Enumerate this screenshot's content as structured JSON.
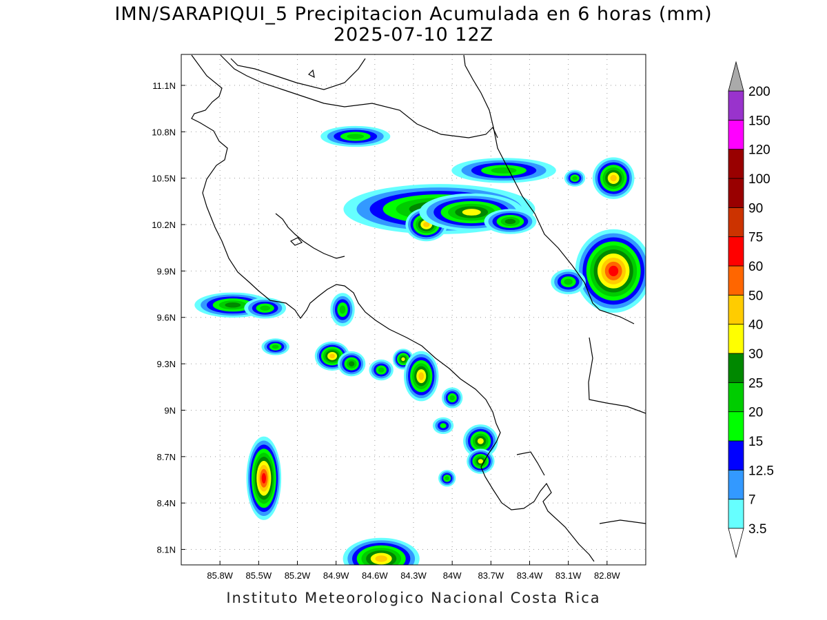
{
  "header": {
    "title": "IMN/SARAPIQUI_5 Precipitacion Acumulada en 6 horas (mm)",
    "datetime": "2025-07-10 12Z"
  },
  "footer": {
    "credit": "Instituto Meteorologico Nacional Costa Rica"
  },
  "map": {
    "lon_range": [
      -86.1,
      -82.5
    ],
    "lat_range": [
      8.0,
      11.3
    ],
    "lat_ticks": [
      {
        "value": 8.1,
        "label": "8.1N"
      },
      {
        "value": 8.4,
        "label": "8.4N"
      },
      {
        "value": 8.7,
        "label": "8.7N"
      },
      {
        "value": 9.0,
        "label": "9N"
      },
      {
        "value": 9.3,
        "label": "9.3N"
      },
      {
        "value": 9.6,
        "label": "9.6N"
      },
      {
        "value": 9.9,
        "label": "9.9N"
      },
      {
        "value": 10.2,
        "label": "10.2N"
      },
      {
        "value": 10.5,
        "label": "10.5N"
      },
      {
        "value": 10.8,
        "label": "10.8N"
      },
      {
        "value": 11.1,
        "label": "11.1N"
      }
    ],
    "lon_ticks": [
      {
        "value": -85.8,
        "label": "85.8W"
      },
      {
        "value": -85.5,
        "label": "85.5W"
      },
      {
        "value": -85.2,
        "label": "85.2W"
      },
      {
        "value": -84.9,
        "label": "84.9W"
      },
      {
        "value": -84.6,
        "label": "84.6W"
      },
      {
        "value": -84.3,
        "label": "84.3W"
      },
      {
        "value": -84.0,
        "label": "84W"
      },
      {
        "value": -83.7,
        "label": "83.7W"
      },
      {
        "value": -83.4,
        "label": "83.4W"
      },
      {
        "value": -83.1,
        "label": "83.1W"
      },
      {
        "value": -82.8,
        "label": "82.8W"
      }
    ],
    "grid": true
  },
  "colorbar": {
    "levels": [
      {
        "label": "3.5",
        "color": "#66ffff"
      },
      {
        "label": "7",
        "color": "#3399ff"
      },
      {
        "label": "12.5",
        "color": "#0000ff"
      },
      {
        "label": "15",
        "color": "#00ff00"
      },
      {
        "label": "20",
        "color": "#00cc00"
      },
      {
        "label": "25",
        "color": "#008800"
      },
      {
        "label": "30",
        "color": "#ffff00"
      },
      {
        "label": "40",
        "color": "#ffcc00"
      },
      {
        "label": "50",
        "color": "#ff6600"
      },
      {
        "label": "60",
        "color": "#ff0000"
      },
      {
        "label": "75",
        "color": "#cc3300"
      },
      {
        "label": "90",
        "color": "#990000"
      },
      {
        "label": "100",
        "color": "#990000"
      },
      {
        "label": "120",
        "color": "#ff00ff"
      },
      {
        "label": "150",
        "color": "#9933cc"
      },
      {
        "label": "200",
        "color": "#f2f2f2"
      }
    ],
    "top_arrow_color": "#aaaaaa",
    "bottom_arrow_color": "#ffffff"
  },
  "precip_cells": [
    {
      "lon": -84.1,
      "lat": 10.3,
      "rx": 0.55,
      "ry": 0.12,
      "peak": 30
    },
    {
      "lon": -84.2,
      "lat": 10.2,
      "rx": 0.12,
      "ry": 0.08,
      "peak": 40
    },
    {
      "lon": -83.85,
      "lat": 10.28,
      "rx": 0.3,
      "ry": 0.09,
      "peak": 30
    },
    {
      "lon": -83.55,
      "lat": 10.22,
      "rx": 0.15,
      "ry": 0.06,
      "peak": 25
    },
    {
      "lon": -84.75,
      "lat": 10.77,
      "rx": 0.2,
      "ry": 0.05,
      "peak": 20
    },
    {
      "lon": -83.6,
      "lat": 10.55,
      "rx": 0.3,
      "ry": 0.06,
      "peak": 20
    },
    {
      "lon": -82.75,
      "lat": 9.9,
      "rx": 0.22,
      "ry": 0.2,
      "peak": 60
    },
    {
      "lon": -82.75,
      "lat": 10.5,
      "rx": 0.12,
      "ry": 0.1,
      "peak": 40
    },
    {
      "lon": -83.05,
      "lat": 10.5,
      "rx": 0.06,
      "ry": 0.04,
      "peak": 20
    },
    {
      "lon": -83.1,
      "lat": 9.83,
      "rx": 0.1,
      "ry": 0.06,
      "peak": 20
    },
    {
      "lon": -85.7,
      "lat": 9.68,
      "rx": 0.22,
      "ry": 0.06,
      "peak": 25
    },
    {
      "lon": -85.45,
      "lat": 9.66,
      "rx": 0.12,
      "ry": 0.05,
      "peak": 20
    },
    {
      "lon": -84.85,
      "lat": 9.65,
      "rx": 0.07,
      "ry": 0.08,
      "peak": 20
    },
    {
      "lon": -84.93,
      "lat": 9.35,
      "rx": 0.1,
      "ry": 0.07,
      "peak": 40
    },
    {
      "lon": -84.78,
      "lat": 9.3,
      "rx": 0.08,
      "ry": 0.06,
      "peak": 25
    },
    {
      "lon": -84.55,
      "lat": 9.26,
      "rx": 0.07,
      "ry": 0.05,
      "peak": 20
    },
    {
      "lon": -84.38,
      "lat": 9.33,
      "rx": 0.06,
      "ry": 0.05,
      "peak": 30
    },
    {
      "lon": -84.24,
      "lat": 9.22,
      "rx": 0.1,
      "ry": 0.12,
      "peak": 40
    },
    {
      "lon": -84.0,
      "lat": 9.08,
      "rx": 0.06,
      "ry": 0.05,
      "peak": 20
    },
    {
      "lon": -83.78,
      "lat": 8.8,
      "rx": 0.1,
      "ry": 0.08,
      "peak": 30
    },
    {
      "lon": -83.78,
      "lat": 8.67,
      "rx": 0.08,
      "ry": 0.06,
      "peak": 30
    },
    {
      "lon": -84.07,
      "lat": 8.9,
      "rx": 0.06,
      "ry": 0.04,
      "peak": 15
    },
    {
      "lon": -84.04,
      "lat": 8.56,
      "rx": 0.05,
      "ry": 0.04,
      "peak": 20
    },
    {
      "lon": -85.46,
      "lat": 8.56,
      "rx": 0.1,
      "ry": 0.2,
      "peak": 60
    },
    {
      "lon": -84.55,
      "lat": 8.04,
      "rx": 0.22,
      "ry": 0.1,
      "peak": 40
    },
    {
      "lon": -85.37,
      "lat": 9.41,
      "rx": 0.08,
      "ry": 0.04,
      "peak": 20
    }
  ]
}
